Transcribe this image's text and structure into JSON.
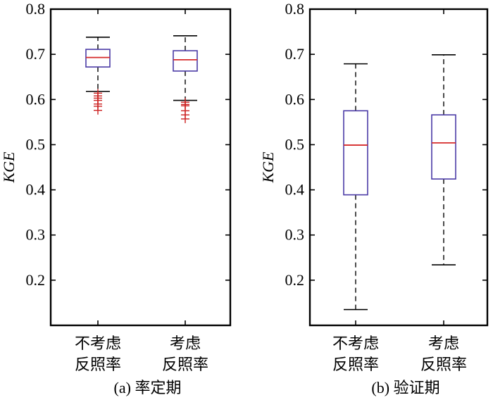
{
  "chart_data": [
    {
      "type": "box",
      "caption": "(a) 率定期",
      "ylabel": "KGE",
      "ylim": [
        0.1,
        0.8
      ],
      "yticks": [
        0.2,
        0.3,
        0.4,
        0.5,
        0.6,
        0.7,
        0.8
      ],
      "yticklabels": [
        "0.2",
        "0.3",
        "0.4",
        "0.5",
        "0.6",
        "0.7",
        "0.8"
      ],
      "categories": [
        {
          "line1": "不考虑",
          "line2": "反照率"
        },
        {
          "line1": "考虑",
          "line2": "反照率"
        }
      ],
      "boxes": [
        {
          "whisker_low": 0.618,
          "q1": 0.672,
          "median": 0.693,
          "q3": 0.711,
          "whisker_high": 0.738,
          "outliers": [
            0.614,
            0.608,
            0.603,
            0.598,
            0.59,
            0.585,
            0.576
          ]
        },
        {
          "whisker_low": 0.598,
          "q1": 0.663,
          "median": 0.688,
          "q3": 0.708,
          "whisker_high": 0.741,
          "outliers": [
            0.594,
            0.589,
            0.586,
            0.575,
            0.566,
            0.557
          ]
        }
      ]
    },
    {
      "type": "box",
      "caption": "(b) 验证期",
      "ylabel": "KGE",
      "ylim": [
        0.1,
        0.8
      ],
      "yticks": [
        0.2,
        0.3,
        0.4,
        0.5,
        0.6,
        0.7,
        0.8
      ],
      "yticklabels": [
        "0.2",
        "0.3",
        "0.4",
        "0.5",
        "0.6",
        "0.7",
        "0.8"
      ],
      "categories": [
        {
          "line1": "不考虑",
          "line2": "反照率"
        },
        {
          "line1": "考虑",
          "line2": "反照率"
        }
      ],
      "boxes": [
        {
          "whisker_low": 0.135,
          "q1": 0.389,
          "median": 0.499,
          "q3": 0.575,
          "whisker_high": 0.679,
          "outliers": []
        },
        {
          "whisker_low": 0.234,
          "q1": 0.424,
          "median": 0.504,
          "q3": 0.566,
          "whisker_high": 0.699,
          "outliers": []
        }
      ]
    }
  ],
  "colors": {
    "box": "#4b3ba6",
    "median": "#d62b2b",
    "outlier": "#cc2222",
    "whisker": "#000000",
    "axis": "#000000"
  }
}
